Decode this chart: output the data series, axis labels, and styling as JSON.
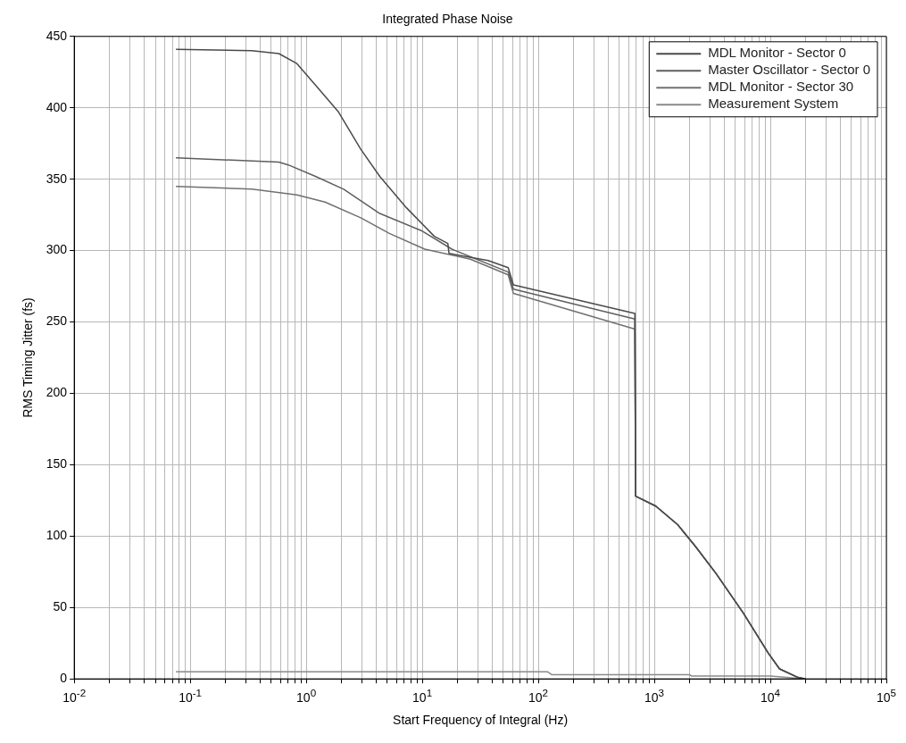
{
  "chart_data": {
    "type": "line",
    "title": "Integrated Phase Noise",
    "xlabel": "Start Frequency of Integral (Hz)",
    "ylabel": "RMS Timing Jitter (fs)",
    "log": "x",
    "grid": true,
    "legend": "top right",
    "marker": "none",
    "line_style": "solid",
    "xlim": [
      0.01,
      100000
    ],
    "ylim": [
      0,
      450
    ],
    "xticks": [
      {
        "value": 0.01,
        "label": "10$^{-2}$"
      },
      {
        "value": 0.02,
        "label": null
      },
      {
        "value": 0.03,
        "label": null
      },
      {
        "value": 0.04,
        "label": null
      },
      {
        "value": 0.05,
        "label": null
      },
      {
        "value": 0.06,
        "label": null
      },
      {
        "value": 0.07,
        "label": null
      },
      {
        "value": 0.08,
        "label": null
      },
      {
        "value": 0.09,
        "label": null
      },
      {
        "value": 0.1,
        "label": "10$^{-1}$"
      },
      {
        "value": 0.2,
        "label": null
      },
      {
        "value": 0.3,
        "label": null
      },
      {
        "value": 0.4,
        "label": null
      },
      {
        "value": 0.5,
        "label": null
      },
      {
        "value": 0.6,
        "label": null
      },
      {
        "value": 0.7,
        "label": null
      },
      {
        "value": 0.8,
        "label": null
      },
      {
        "value": 0.9,
        "label": null
      },
      {
        "value": 1,
        "label": "10$^{0}$"
      },
      {
        "value": 2,
        "label": null
      },
      {
        "value": 3,
        "label": null
      },
      {
        "value": 4,
        "label": null
      },
      {
        "value": 5,
        "label": null
      },
      {
        "value": 6,
        "label": null
      },
      {
        "value": 7,
        "label": null
      },
      {
        "value": 8,
        "label": null
      },
      {
        "value": 9,
        "label": null
      },
      {
        "value": 10,
        "label": "10$^{1}$"
      },
      {
        "value": 20,
        "label": null
      },
      {
        "value": 30,
        "label": null
      },
      {
        "value": 40,
        "label": null
      },
      {
        "value": 50,
        "label": null
      },
      {
        "value": 60,
        "label": null
      },
      {
        "value": 70,
        "label": null
      },
      {
        "value": 80,
        "label": null
      },
      {
        "value": 90,
        "label": null
      },
      {
        "value": 100,
        "label": "10$^{2}$"
      },
      {
        "value": 200,
        "label": null
      },
      {
        "value": 300,
        "label": null
      },
      {
        "value": 400,
        "label": null
      },
      {
        "value": 500,
        "label": null
      },
      {
        "value": 600,
        "label": null
      },
      {
        "value": 700,
        "label": null
      },
      {
        "value": 800,
        "label": null
      },
      {
        "value": 900,
        "label": null
      },
      {
        "value": 1000,
        "label": "10$^{3}$"
      },
      {
        "value": 2000,
        "label": null
      },
      {
        "value": 3000,
        "label": null
      },
      {
        "value": 4000,
        "label": null
      },
      {
        "value": 5000,
        "label": null
      },
      {
        "value": 6000,
        "label": null
      },
      {
        "value": 7000,
        "label": null
      },
      {
        "value": 8000,
        "label": null
      },
      {
        "value": 9000,
        "label": null
      },
      {
        "value": 10000,
        "label": "10$^{4}$"
      },
      {
        "value": 20000,
        "label": null
      },
      {
        "value": 30000,
        "label": null
      },
      {
        "value": 40000,
        "label": null
      },
      {
        "value": 50000,
        "label": null
      },
      {
        "value": 60000,
        "label": null
      },
      {
        "value": 70000,
        "label": null
      },
      {
        "value": 80000,
        "label": null
      },
      {
        "value": 90000,
        "label": null
      },
      {
        "value": 100000,
        "label": "10$^{5}$"
      }
    ],
    "yticks": [
      0,
      50,
      100,
      150,
      200,
      250,
      300,
      350,
      400,
      450
    ],
    "series": [
      {
        "name": "MDL Monitor - Sector 0",
        "color": "#4a4a4a",
        "x": [
          0.076,
          0.34,
          0.58,
          0.83,
          1.2,
          1.9,
          2.95,
          4.3,
          7.3,
          12.7,
          16.6,
          17,
          37,
          55,
          61,
          680,
          690,
          1030,
          1590,
          2250,
          3390,
          5860,
          9600,
          12000,
          17300,
          20000
        ],
        "values": [
          441,
          440,
          438,
          431,
          416,
          397,
          371,
          352,
          330,
          310,
          305,
          298,
          293,
          288,
          276,
          256,
          128,
          121,
          108,
          93,
          74,
          46,
          18,
          7,
          1,
          0
        ]
      },
      {
        "name": "Master Oscillator - Sector 0",
        "color": "#5e5e5e",
        "x": [
          0.076,
          0.58,
          0.7,
          1.2,
          2.1,
          4.3,
          9.8,
          18,
          55,
          61,
          680,
          690,
          1030,
          1590,
          2250,
          3390,
          5860,
          9600,
          12000,
          17300,
          20000
        ],
        "values": [
          365,
          362,
          360,
          352,
          343,
          326,
          314,
          301,
          285,
          273,
          252,
          128,
          121,
          108,
          93,
          74,
          46,
          18,
          7,
          1,
          0
        ]
      },
      {
        "name": "MDL Monitor - Sector 30",
        "color": "#707070",
        "x": [
          0.076,
          0.34,
          0.83,
          1.45,
          2.95,
          5.2,
          10.5,
          26,
          55,
          61,
          680,
          690,
          1030,
          1590,
          2250,
          3390,
          5860,
          9600,
          12000,
          17300,
          20000
        ],
        "values": [
          345,
          343,
          339,
          334,
          323,
          312,
          301,
          294,
          283,
          270,
          245,
          128,
          121,
          108,
          93,
          74,
          46,
          18,
          7,
          1,
          0
        ]
      },
      {
        "name": "Measurement System",
        "color": "#8a8a8a",
        "x": [
          0.076,
          120,
          130,
          2000,
          2100,
          10000,
          20000
        ],
        "values": [
          5,
          5,
          3,
          3,
          2,
          2,
          0
        ]
      }
    ]
  }
}
